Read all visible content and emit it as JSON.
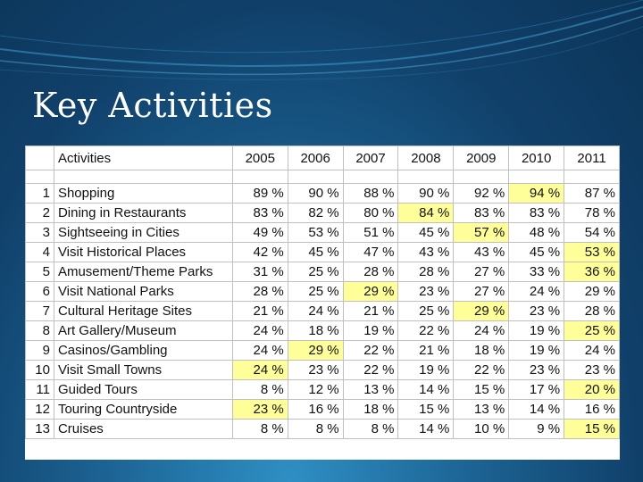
{
  "slide": {
    "title": "Key Activities"
  },
  "table": {
    "header_activity": "Activities",
    "years": [
      "2005",
      "2006",
      "2007",
      "2008",
      "2009",
      "2010",
      "2011"
    ],
    "highlight_color": "#ffff99",
    "rows": [
      {
        "num": "1",
        "activity": "Shopping",
        "values": [
          "89 %",
          "90 %",
          "88 %",
          "90 %",
          "92 %",
          "94 %",
          "87 %"
        ],
        "highlight": [
          5
        ]
      },
      {
        "num": "2",
        "activity": "Dining in Restaurants",
        "values": [
          "83 %",
          "82 %",
          "80 %",
          "84 %",
          "83 %",
          "83 %",
          "78 %"
        ],
        "highlight": [
          3
        ]
      },
      {
        "num": "3",
        "activity": "Sightseeing in Cities",
        "values": [
          "49 %",
          "53 %",
          "51 %",
          "45 %",
          "57 %",
          "48 %",
          "54 %"
        ],
        "highlight": [
          4
        ]
      },
      {
        "num": "4",
        "activity": "Visit Historical Places",
        "values": [
          "42 %",
          "45 %",
          "47 %",
          "43 %",
          "43 %",
          "45 %",
          "53 %"
        ],
        "highlight": [
          6
        ]
      },
      {
        "num": "5",
        "activity": "Amusement/Theme Parks",
        "values": [
          "31 %",
          "25 %",
          "28 %",
          "28 %",
          "27 %",
          "33 %",
          "36 %"
        ],
        "highlight": [
          6
        ]
      },
      {
        "num": "6",
        "activity": "Visit National Parks",
        "values": [
          "28 %",
          "25 %",
          "29 %",
          "23 %",
          "27 %",
          "24 %",
          "29 %"
        ],
        "highlight": [
          2
        ]
      },
      {
        "num": "7",
        "activity": "Cultural Heritage Sites",
        "values": [
          "21 %",
          "24 %",
          "21 %",
          "25 %",
          "29 %",
          "23 %",
          "28 %"
        ],
        "highlight": [
          4
        ]
      },
      {
        "num": "8",
        "activity": "Art Gallery/Museum",
        "values": [
          "24 %",
          "18 %",
          "19 %",
          "22 %",
          "24 %",
          "19 %",
          "25 %"
        ],
        "highlight": [
          6
        ]
      },
      {
        "num": "9",
        "activity": "Casinos/Gambling",
        "values": [
          "24 %",
          "29 %",
          "22 %",
          "21 %",
          "18 %",
          "19 %",
          "24 %"
        ],
        "highlight": [
          1
        ]
      },
      {
        "num": "10",
        "activity": "Visit Small Towns",
        "values": [
          "24 %",
          "23 %",
          "22 %",
          "19 %",
          "22 %",
          "23 %",
          "23 %"
        ],
        "highlight": [
          0
        ]
      },
      {
        "num": "11",
        "activity": "Guided Tours",
        "values": [
          "8 %",
          "12 %",
          "13 %",
          "14 %",
          "15 %",
          "17 %",
          "20 %"
        ],
        "highlight": [
          6
        ]
      },
      {
        "num": "12",
        "activity": "Touring Countryside",
        "values": [
          "23 %",
          "16 %",
          "18 %",
          "15 %",
          "13 %",
          "14 %",
          "16 %"
        ],
        "highlight": [
          0
        ]
      },
      {
        "num": "13",
        "activity": "Cruises",
        "values": [
          "8 %",
          "8 %",
          "8 %",
          "14 %",
          "10 %",
          "9 %",
          "15 %"
        ],
        "highlight": [
          6
        ]
      }
    ]
  }
}
